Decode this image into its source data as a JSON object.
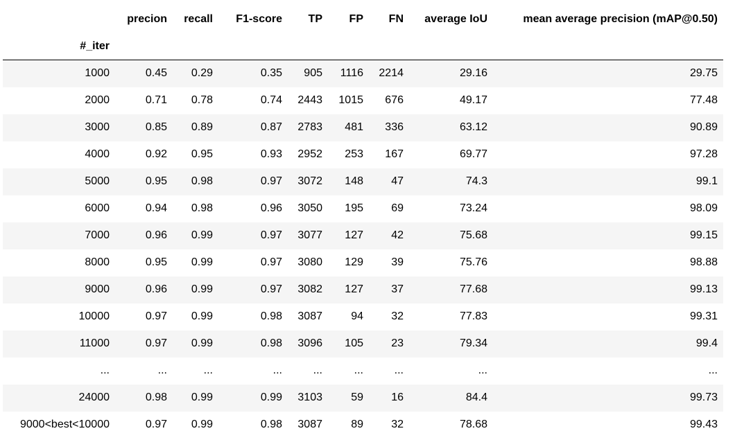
{
  "chart_data": {
    "type": "table",
    "index_name": "#_iter",
    "columns": [
      "precion",
      "recall",
      "F1-score",
      "TP",
      "FP",
      "FN",
      "average IoU",
      "mean average precision (mAP@0.50)"
    ],
    "rows": [
      {
        "index": "1000",
        "cells": [
          "0.45",
          "0.29",
          "0.35",
          "905",
          "1116",
          "2214",
          "29.16",
          "29.75"
        ]
      },
      {
        "index": "2000",
        "cells": [
          "0.71",
          "0.78",
          "0.74",
          "2443",
          "1015",
          "676",
          "49.17",
          "77.48"
        ]
      },
      {
        "index": "3000",
        "cells": [
          "0.85",
          "0.89",
          "0.87",
          "2783",
          "481",
          "336",
          "63.12",
          "90.89"
        ]
      },
      {
        "index": "4000",
        "cells": [
          "0.92",
          "0.95",
          "0.93",
          "2952",
          "253",
          "167",
          "69.77",
          "97.28"
        ]
      },
      {
        "index": "5000",
        "cells": [
          "0.95",
          "0.98",
          "0.97",
          "3072",
          "148",
          "47",
          "74.3",
          "99.1"
        ]
      },
      {
        "index": "6000",
        "cells": [
          "0.94",
          "0.98",
          "0.96",
          "3050",
          "195",
          "69",
          "73.24",
          "98.09"
        ]
      },
      {
        "index": "7000",
        "cells": [
          "0.96",
          "0.99",
          "0.97",
          "3077",
          "127",
          "42",
          "75.68",
          "99.15"
        ]
      },
      {
        "index": "8000",
        "cells": [
          "0.95",
          "0.99",
          "0.97",
          "3080",
          "129",
          "39",
          "75.76",
          "98.88"
        ]
      },
      {
        "index": "9000",
        "cells": [
          "0.96",
          "0.99",
          "0.97",
          "3082",
          "127",
          "37",
          "77.68",
          "99.13"
        ]
      },
      {
        "index": "10000",
        "cells": [
          "0.97",
          "0.99",
          "0.98",
          "3087",
          "94",
          "32",
          "77.83",
          "99.31"
        ]
      },
      {
        "index": "11000",
        "cells": [
          "0.97",
          "0.99",
          "0.98",
          "3096",
          "105",
          "23",
          "79.34",
          "99.4"
        ]
      },
      {
        "index": "...",
        "cells": [
          "...",
          "...",
          "...",
          "...",
          "...",
          "...",
          "...",
          "..."
        ]
      },
      {
        "index": "24000",
        "cells": [
          "0.98",
          "0.99",
          "0.99",
          "3103",
          "59",
          "16",
          "84.4",
          "99.73"
        ]
      },
      {
        "index": "9000<best<10000",
        "cells": [
          "0.97",
          "0.99",
          "0.98",
          "3087",
          "89",
          "32",
          "78.68",
          "99.43"
        ]
      }
    ]
  }
}
